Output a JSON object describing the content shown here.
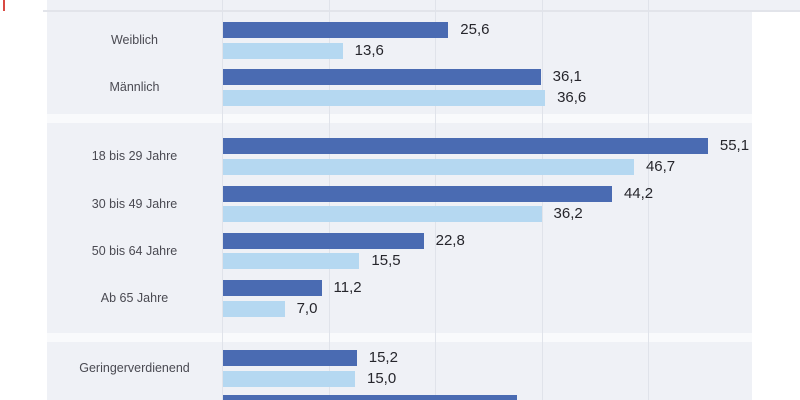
{
  "page": {
    "background": "#ffffff",
    "note_top_left_marker": "small red tick at extreme top-left corner"
  },
  "panel": {
    "background": "#eff1f6",
    "separator_band_color": "#f9fafc",
    "gridline_color": "#e0e3ea",
    "top_rule_color": "#e2e4ea"
  },
  "chart_data": {
    "type": "bar",
    "orientation": "horizontal",
    "title": "",
    "legend_visible": false,
    "grid": true,
    "xlim": [
      0,
      60
    ],
    "categories": [
      "Weiblich",
      "Männlich",
      "18 bis 29 Jahre",
      "30 bis 49 Jahre",
      "50 bis 64 Jahre",
      "Ab 65 Jahre",
      "Geringerverdienend"
    ],
    "groups": [
      [
        "Weiblich",
        "Männlich"
      ],
      [
        "18 bis 29 Jahre",
        "30 bis 49 Jahre",
        "50 bis 64 Jahre",
        "Ab 65 Jahre"
      ],
      [
        "Geringerverdienend"
      ]
    ],
    "series": [
      {
        "name": "series-dark-blue",
        "color": "#4a6bb2",
        "values": [
          25.6,
          36.1,
          55.1,
          44.2,
          22.8,
          11.2,
          15.2
        ]
      },
      {
        "name": "series-light-blue",
        "color": "#b5d8f1",
        "values": [
          13.6,
          36.6,
          46.7,
          36.2,
          15.5,
          7.0,
          15.0
        ]
      }
    ],
    "value_labels": [
      [
        "25,6",
        "13,6"
      ],
      [
        "36,1",
        "36,6"
      ],
      [
        "55,1",
        "46,7"
      ],
      [
        "44,2",
        "36,2"
      ],
      [
        "22,8",
        "15,5"
      ],
      [
        "11,2",
        "7,0"
      ],
      [
        "15,2",
        "15,0"
      ]
    ],
    "partial_bottom_row": {
      "series": "series-dark-blue",
      "approx_value": 33.4,
      "value_label_visible": false,
      "category_label_visible": false,
      "note": "eighth row cut off by bottom edge of screenshot"
    }
  }
}
